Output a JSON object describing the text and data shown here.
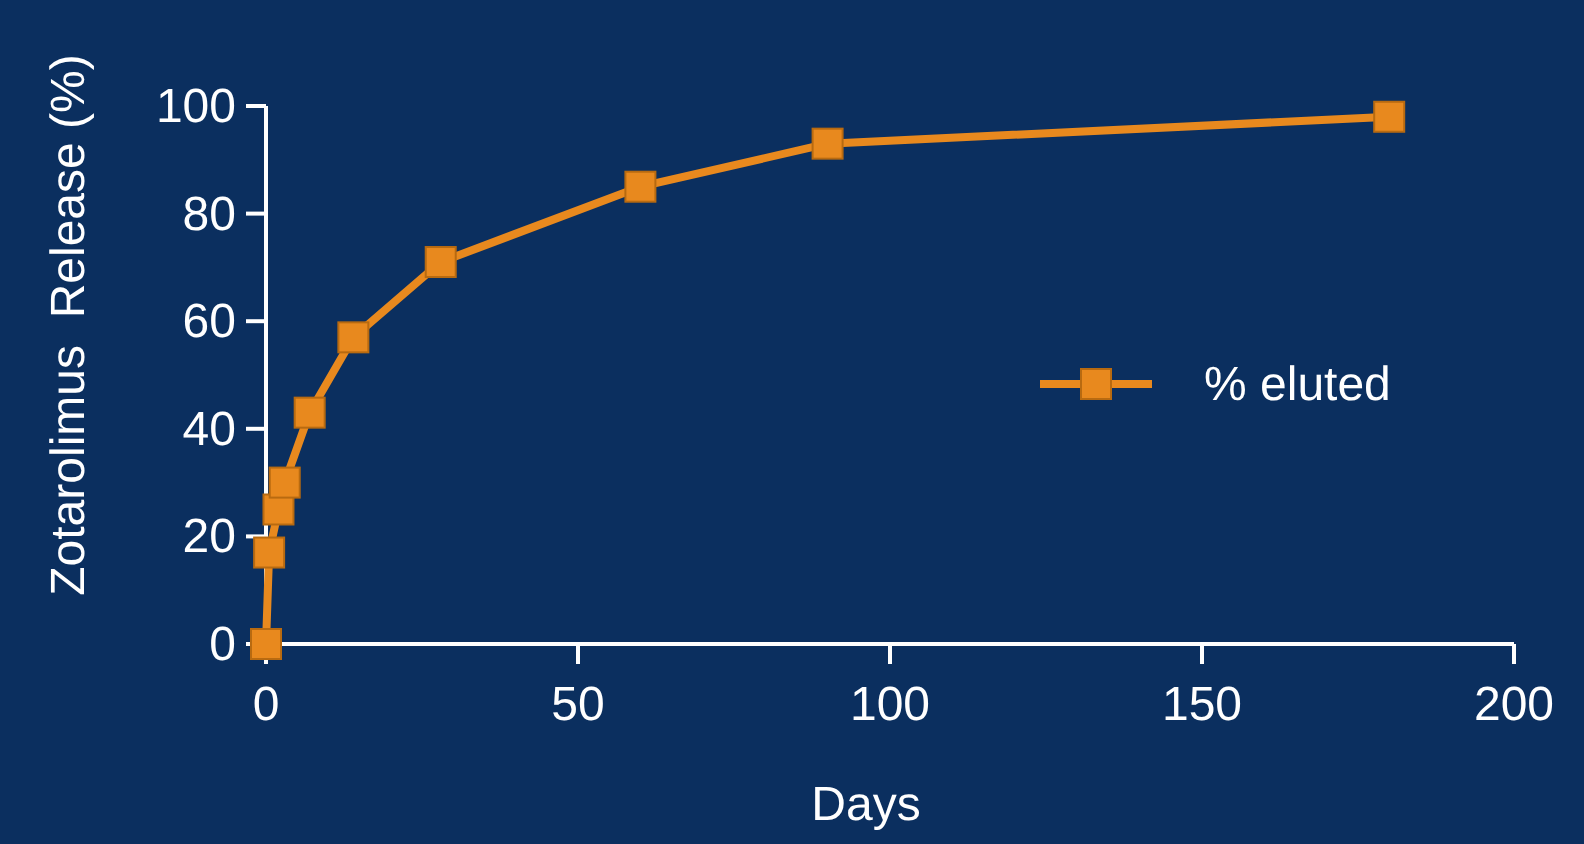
{
  "chart_data": {
    "type": "line",
    "xlabel": "Days",
    "ylabel": "Zotarolimus  Release (%)",
    "x": [
      0,
      0.5,
      2,
      3,
      7,
      14,
      28,
      60,
      90,
      180
    ],
    "series": [
      {
        "name": "% eluted",
        "color": "#e8891e",
        "values": [
          0,
          17,
          25,
          30,
          43,
          57,
          71,
          85,
          93,
          98
        ]
      }
    ],
    "xlim": [
      0,
      200
    ],
    "xticks": [
      0,
      50,
      100,
      150,
      200
    ],
    "ylim": [
      0,
      100
    ],
    "yticks": [
      0,
      20,
      40,
      60,
      80,
      100
    ],
    "grid": false,
    "legend": "right",
    "marker": "square",
    "line_style": "solid"
  }
}
